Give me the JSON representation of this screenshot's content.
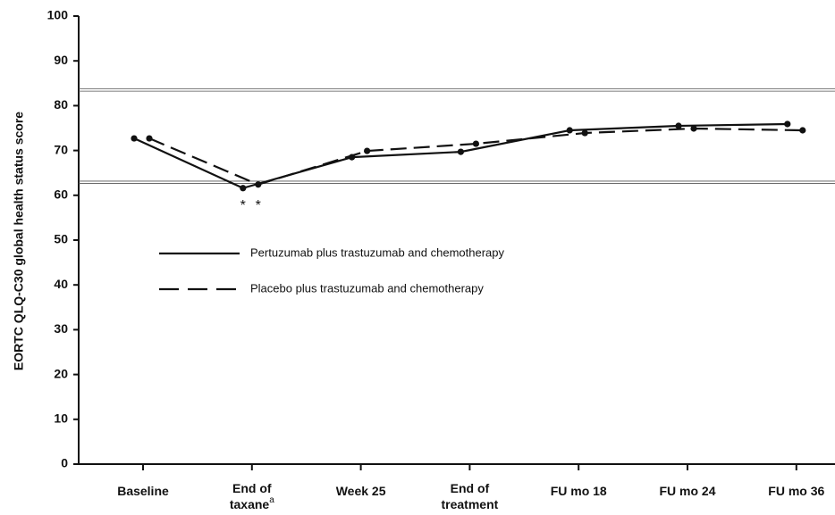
{
  "chart_data": {
    "type": "line",
    "y_label": "EORTC QLQ-C30 global health status score",
    "categories": [
      "Baseline",
      "End of taxane",
      "Week 25",
      "End of treatment",
      "FU mo 18",
      "FU mo 24",
      "FU mo 36"
    ],
    "category_footnote": "a",
    "series": [
      {
        "name": "Pertuzumab plus trastuzumab and chemotherapy",
        "color": "#111111",
        "dash": "solid",
        "values": [
          72.7,
          61.6,
          68.5,
          69.7,
          74.5,
          75.5,
          75.9
        ]
      },
      {
        "name": "Placebo plus trastuzumab and chemotherapy",
        "color": "#111111",
        "dash": "dashed",
        "values": [
          72.7,
          62.4,
          69.9,
          71.5,
          73.9,
          74.9,
          74.5
        ]
      }
    ],
    "annotations": [
      "*",
      "*"
    ],
    "reference_lines": [
      83.5,
      62.9
    ],
    "ylim": [
      0,
      100
    ],
    "yticks": [
      0,
      10,
      20,
      30,
      40,
      50,
      60,
      70,
      80,
      90,
      100
    ]
  }
}
